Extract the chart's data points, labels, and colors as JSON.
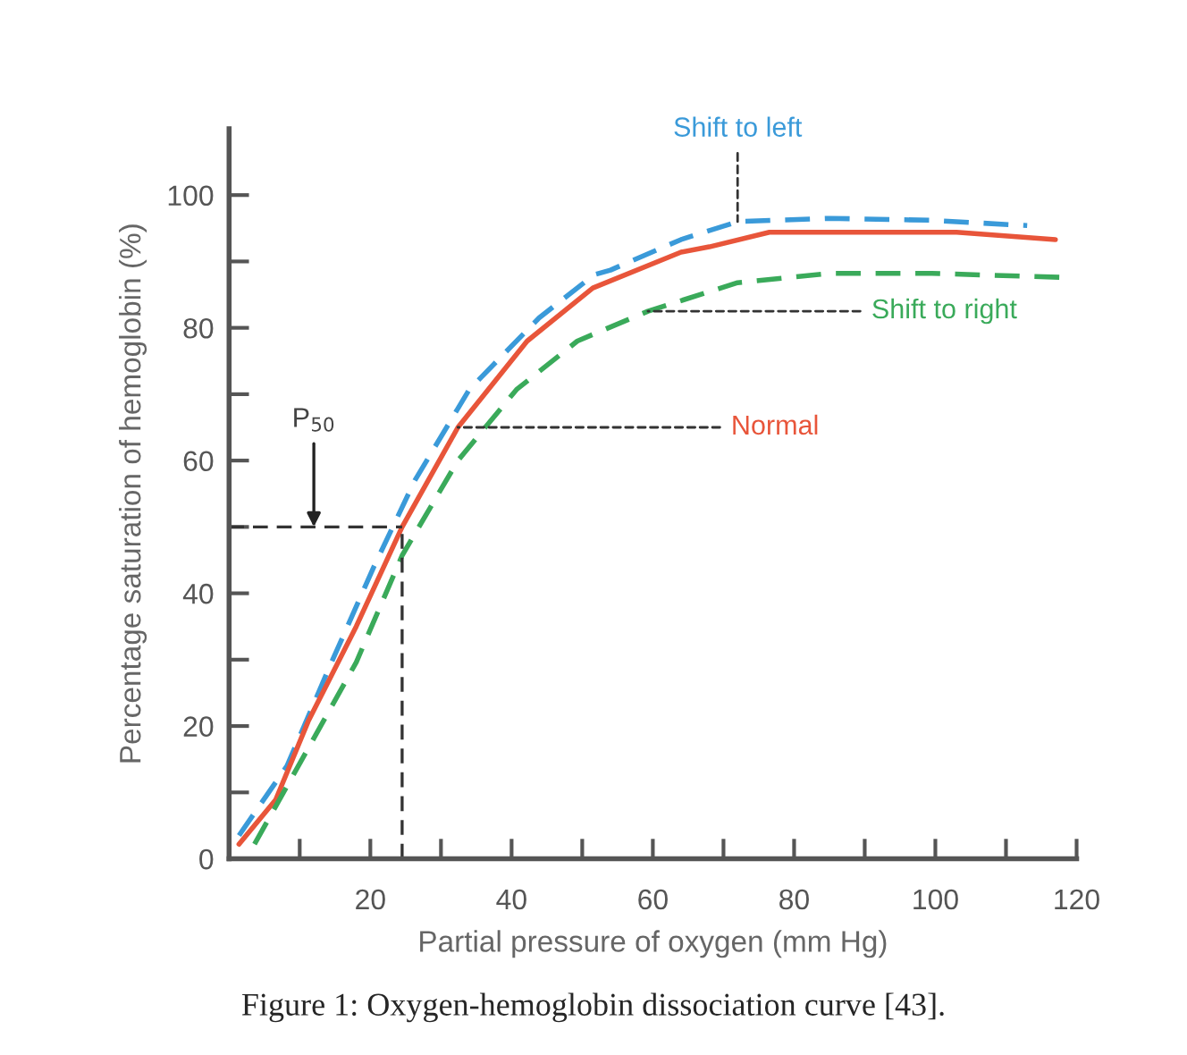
{
  "chart_data": {
    "type": "line",
    "xlabel": "Partial pressure of oxygen (mm Hg)",
    "ylabel": "Percentage saturation of hemoglobin (%)",
    "xlim": [
      0,
      120
    ],
    "ylim": [
      0,
      110
    ],
    "xticks": [
      {
        "value": 10,
        "label": null
      },
      20,
      {
        "value": 30,
        "label": null
      },
      40,
      {
        "value": 50,
        "label": null
      },
      60,
      {
        "value": 70,
        "label": null
      },
      80,
      {
        "value": 90,
        "label": null
      },
      100,
      {
        "value": 110,
        "label": null
      },
      120
    ],
    "yticks": [
      0,
      {
        "value": 10,
        "label": null
      },
      20,
      {
        "value": 30,
        "label": null
      },
      40,
      {
        "value": 50,
        "label": null
      },
      60,
      {
        "value": 70,
        "label": null
      },
      80,
      {
        "value": 90,
        "label": null
      },
      100
    ],
    "grid": false,
    "legend": false,
    "series": [
      {
        "name": "Shift to left",
        "color": "#3a9ad9",
        "line_style": "dashed",
        "x": [
          1.4,
          8.2,
          14.5,
          20.5,
          26.3,
          34,
          43.9,
          51.7,
          54,
          64,
          72,
          85,
          99.5,
          113
        ],
        "values": [
          3.5,
          14,
          29.6,
          44,
          57,
          70.7,
          81.5,
          88,
          88.7,
          93.3,
          96,
          96.5,
          96.2,
          95.4
        ]
      },
      {
        "name": "Normal",
        "color": "#e8553a",
        "line_style": "solid",
        "x": [
          1.4,
          6.6,
          11.2,
          18,
          24.5,
          32.4,
          42.2,
          51.5,
          64,
          68,
          76.5,
          89,
          103,
          117
        ],
        "values": [
          2.2,
          8.9,
          20.7,
          35,
          50,
          65,
          78,
          86,
          91.4,
          92.2,
          94.4,
          94.4,
          94.4,
          93.3
        ]
      },
      {
        "name": "Shift to right",
        "color": "#3aaa5a",
        "line_style": "dashed",
        "x": [
          3.6,
          10.5,
          18,
          24.5,
          32.4,
          40.7,
          49.3,
          59.3,
          72,
          85,
          99.5,
          118
        ],
        "values": [
          2.2,
          15.3,
          29.6,
          45.7,
          60,
          70.7,
          78,
          82.5,
          86.8,
          88.2,
          88.2,
          87.6
        ]
      }
    ],
    "ref_lines": [
      {
        "axis": "y",
        "value": 50,
        "color": "#333333",
        "line_style": "dashed"
      },
      {
        "axis": "x",
        "value": 24.5,
        "color": "#333333",
        "line_style": "dashed"
      }
    ],
    "annotations": [
      {
        "text": "P$_{50}$",
        "x": 12,
        "y": 50
      },
      "Figure 1: Oxygen-hemoglobin dissociation curve [43]."
    ]
  }
}
